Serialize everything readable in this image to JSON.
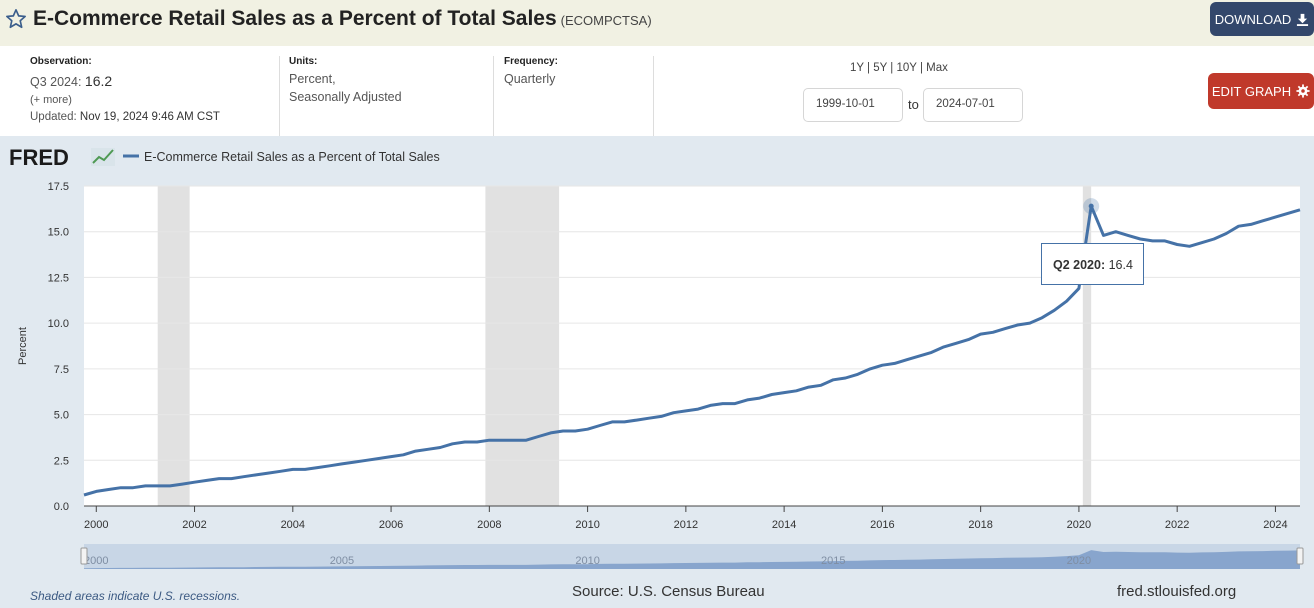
{
  "header": {
    "title": "E-Commerce Retail Sales as a Percent of Total Sales",
    "series_code": "(ECOMPCTSA)",
    "download_label": "DOWNLOAD"
  },
  "meta": {
    "observation_label": "Observation:",
    "observation_period": "Q3 2024:",
    "observation_value": "16.2",
    "more": "(+ more)",
    "updated_label": "Updated:",
    "updated_value": "Nov 19, 2024 9:46 AM CST",
    "units_label": "Units:",
    "units_line1": "Percent,",
    "units_line2": "Seasonally Adjusted",
    "frequency_label": "Frequency:",
    "frequency_value": "Quarterly"
  },
  "controls": {
    "range_1y": "1Y",
    "range_5y": "5Y",
    "range_10y": "10Y",
    "range_max": "Max",
    "start_date": "1999-10-01",
    "to_label": "to",
    "end_date": "2024-07-01",
    "edit_label": "EDIT GRAPH"
  },
  "footer": {
    "recession_note": "Shaded areas indicate U.S. recessions.",
    "source": "Source: U.S. Census Bureau",
    "url": "fred.stlouisfed.org"
  },
  "tooltip": {
    "period": "Q2 2020:",
    "value": "16.4"
  },
  "navigator": {
    "labels": [
      "2000",
      "2005",
      "2010",
      "2015",
      "2020"
    ]
  },
  "logo_text": "FRED",
  "colors": {
    "line": "#4572a7",
    "recession": "#e1e1e1",
    "edit_button": "#c0392b",
    "download_button": "#33476b"
  },
  "chart_data": {
    "type": "line",
    "title": "",
    "ylabel": "Percent",
    "xlabel": "",
    "ylim": [
      0,
      17.5
    ],
    "yticks": [
      "0.0",
      "2.5",
      "5.0",
      "7.5",
      "10.0",
      "12.5",
      "15.0",
      "17.5"
    ],
    "xticks": [
      "2000",
      "2002",
      "2004",
      "2006",
      "2008",
      "2010",
      "2012",
      "2014",
      "2016",
      "2018",
      "2020",
      "2022",
      "2024"
    ],
    "legend": "top-left",
    "grid": true,
    "recessions": [
      [
        2001.25,
        2001.9
      ],
      [
        2007.92,
        2009.42
      ],
      [
        2020.08,
        2020.25
      ]
    ],
    "series": [
      {
        "name": "E-Commerce Retail Sales as a Percent of Total Sales",
        "x": [
          "1999 Q4",
          "2000 Q1",
          "2000 Q2",
          "2000 Q3",
          "2000 Q4",
          "2001 Q1",
          "2001 Q2",
          "2001 Q3",
          "2001 Q4",
          "2002 Q1",
          "2002 Q2",
          "2002 Q3",
          "2002 Q4",
          "2003 Q1",
          "2003 Q2",
          "2003 Q3",
          "2003 Q4",
          "2004 Q1",
          "2004 Q2",
          "2004 Q3",
          "2004 Q4",
          "2005 Q1",
          "2005 Q2",
          "2005 Q3",
          "2005 Q4",
          "2006 Q1",
          "2006 Q2",
          "2006 Q3",
          "2006 Q4",
          "2007 Q1",
          "2007 Q2",
          "2007 Q3",
          "2007 Q4",
          "2008 Q1",
          "2008 Q2",
          "2008 Q3",
          "2008 Q4",
          "2009 Q1",
          "2009 Q2",
          "2009 Q3",
          "2009 Q4",
          "2010 Q1",
          "2010 Q2",
          "2010 Q3",
          "2010 Q4",
          "2011 Q1",
          "2011 Q2",
          "2011 Q3",
          "2011 Q4",
          "2012 Q1",
          "2012 Q2",
          "2012 Q3",
          "2012 Q4",
          "2013 Q1",
          "2013 Q2",
          "2013 Q3",
          "2013 Q4",
          "2014 Q1",
          "2014 Q2",
          "2014 Q3",
          "2014 Q4",
          "2015 Q1",
          "2015 Q2",
          "2015 Q3",
          "2015 Q4",
          "2016 Q1",
          "2016 Q2",
          "2016 Q3",
          "2016 Q4",
          "2017 Q1",
          "2017 Q2",
          "2017 Q3",
          "2017 Q4",
          "2018 Q1",
          "2018 Q2",
          "2018 Q3",
          "2018 Q4",
          "2019 Q1",
          "2019 Q2",
          "2019 Q3",
          "2019 Q4",
          "2020 Q1",
          "2020 Q2",
          "2020 Q3",
          "2020 Q4",
          "2021 Q1",
          "2021 Q2",
          "2021 Q3",
          "2021 Q4",
          "2022 Q1",
          "2022 Q2",
          "2022 Q3",
          "2022 Q4",
          "2023 Q1",
          "2023 Q2",
          "2023 Q3",
          "2023 Q4",
          "2024 Q1",
          "2024 Q2",
          "2024 Q3"
        ],
        "values": [
          0.6,
          0.8,
          0.9,
          1.0,
          1.0,
          1.1,
          1.1,
          1.1,
          1.2,
          1.3,
          1.4,
          1.5,
          1.5,
          1.6,
          1.7,
          1.8,
          1.9,
          2.0,
          2.0,
          2.1,
          2.2,
          2.3,
          2.4,
          2.5,
          2.6,
          2.7,
          2.8,
          3.0,
          3.1,
          3.2,
          3.4,
          3.5,
          3.5,
          3.6,
          3.6,
          3.6,
          3.6,
          3.8,
          4.0,
          4.1,
          4.1,
          4.2,
          4.4,
          4.6,
          4.6,
          4.7,
          4.8,
          4.9,
          5.1,
          5.2,
          5.3,
          5.5,
          5.6,
          5.6,
          5.8,
          5.9,
          6.1,
          6.2,
          6.3,
          6.5,
          6.6,
          6.9,
          7.0,
          7.2,
          7.5,
          7.7,
          7.8,
          8.0,
          8.2,
          8.4,
          8.7,
          8.9,
          9.1,
          9.4,
          9.5,
          9.7,
          9.9,
          10.0,
          10.3,
          10.7,
          11.2,
          11.9,
          16.4,
          14.8,
          15.0,
          14.8,
          14.6,
          14.5,
          14.5,
          14.3,
          14.2,
          14.4,
          14.6,
          14.9,
          15.3,
          15.4,
          15.6,
          15.8,
          16.0,
          16.2
        ]
      }
    ]
  }
}
